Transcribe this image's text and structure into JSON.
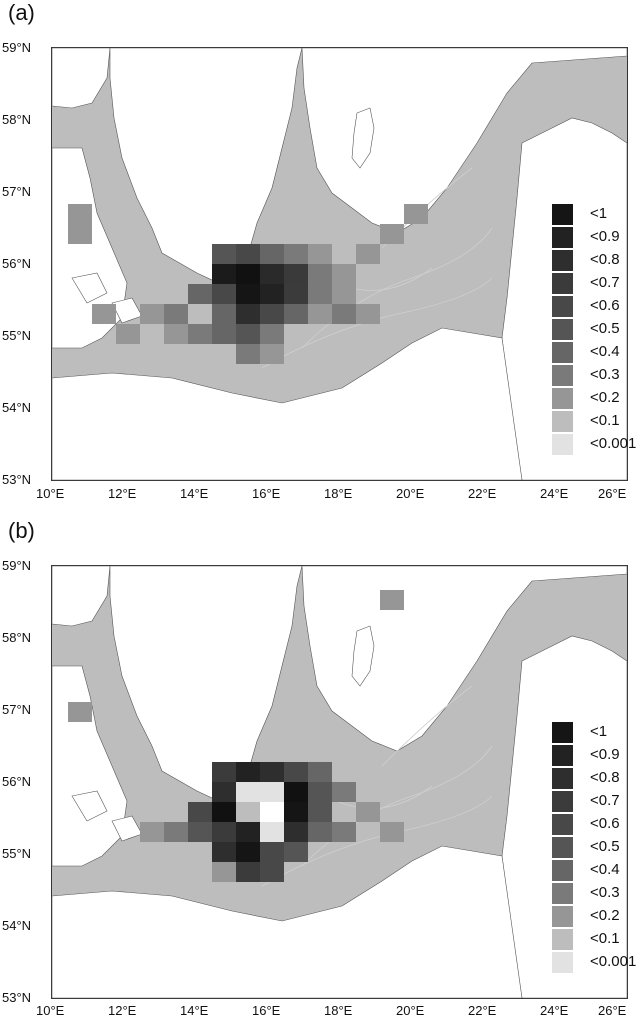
{
  "panels": [
    {
      "label": "(a)",
      "lat_labels": [
        "59°N",
        "58°N",
        "57°N",
        "56°N",
        "55°N",
        "54°N",
        "53°N"
      ],
      "lon_labels": [
        "10°E",
        "12°E",
        "14°E",
        "16°E",
        "18°E",
        "20°E",
        "22°E",
        "24°E",
        "26°E"
      ],
      "legend": [
        {
          "label": "<1",
          "color": "#151515"
        },
        {
          "label": "<0.9",
          "color": "#222222"
        },
        {
          "label": "<0.8",
          "color": "#2e2e2e"
        },
        {
          "label": "<0.7",
          "color": "#3b3b3b"
        },
        {
          "label": "<0.6",
          "color": "#484848"
        },
        {
          "label": "<0.5",
          "color": "#555555"
        },
        {
          "label": "<0.4",
          "color": "#666666"
        },
        {
          "label": "<0.3",
          "color": "#7a7a7a"
        },
        {
          "label": "<0.2",
          "color": "#969696"
        },
        {
          "label": "<0.1",
          "color": "#bdbdbd"
        },
        {
          "label": "<0.001",
          "color": "#e2e2e2"
        }
      ]
    },
    {
      "label": "(b)",
      "lat_labels": [
        "59°N",
        "58°N",
        "57°N",
        "56°N",
        "55°N",
        "54°N",
        "53°N"
      ],
      "lon_labels": [
        "10°E",
        "12°E",
        "14°E",
        "16°E",
        "18°E",
        "20°E",
        "22°E",
        "24°E",
        "26°E"
      ],
      "legend": [
        {
          "label": "<1",
          "color": "#151515"
        },
        {
          "label": "<0.9",
          "color": "#222222"
        },
        {
          "label": "<0.8",
          "color": "#2e2e2e"
        },
        {
          "label": "<0.7",
          "color": "#3b3b3b"
        },
        {
          "label": "<0.6",
          "color": "#484848"
        },
        {
          "label": "<0.5",
          "color": "#555555"
        },
        {
          "label": "<0.4",
          "color": "#666666"
        },
        {
          "label": "<0.3",
          "color": "#7a7a7a"
        },
        {
          "label": "<0.2",
          "color": "#969696"
        },
        {
          "label": "<0.1",
          "color": "#bdbdbd"
        },
        {
          "label": "<0.001",
          "color": "#e2e2e2"
        }
      ]
    }
  ],
  "colors": {
    "land": "#ffffff",
    "sea": "#bdbdbd",
    "contour": "#cfcfcf",
    "border": "#333333"
  }
}
